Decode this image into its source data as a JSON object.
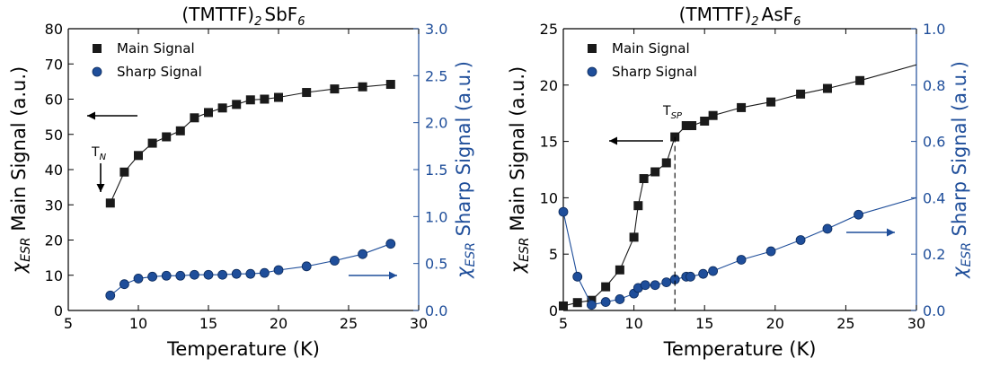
{
  "colors": {
    "main": "#1a1a1a",
    "sharp": "#1f4e9a",
    "sharp_edge": "#0b2a5c"
  },
  "chart_data": [
    {
      "type": "scatter",
      "title": "(TMTTF)$_2$SbF$_6$",
      "title_parts": {
        "pre": "(TMTTF)",
        "sub": "2",
        "mid": "SbF",
        "sub2": "6"
      },
      "xlabel": "Temperature (K)",
      "ylabel_left": "χ$_{ESR}$ Main Signal (a.u.)",
      "ylabel_left_parts": {
        "chi": "χ",
        "sub": "ESR",
        "rest": "Main Signal (a.u.)"
      },
      "ylabel_right": "χ$_{ESR}$ Sharp Signal (a.u.)",
      "ylabel_right_parts": {
        "chi": "χ",
        "sub": "ESR",
        "rest": "Sharp Signal (a.u.)"
      },
      "xlim": [
        5,
        30
      ],
      "xticks": [
        "5",
        "10",
        "15",
        "20",
        "25",
        "30"
      ],
      "ylim_left": [
        0,
        80
      ],
      "yticks_left": [
        "0",
        "10",
        "20",
        "30",
        "40",
        "50",
        "60",
        "70",
        "80"
      ],
      "ylim_right": [
        0,
        3
      ],
      "yticks_right": [
        "0.0",
        "0.5",
        "1.0",
        "1.5",
        "2.0",
        "2.5",
        "3.0"
      ],
      "legend": {
        "position": "top-left",
        "entries": [
          "Main Signal",
          "Sharp Signal"
        ]
      },
      "annotation": {
        "label": "T",
        "sub": "N",
        "x": 7.8,
        "y": 35
      },
      "series": [
        {
          "name": "Main Signal",
          "axis": "left",
          "marker": "square",
          "x": [
            8,
            9,
            10,
            11,
            12,
            13,
            14,
            15,
            16,
            17,
            18,
            19,
            20,
            22,
            24,
            26,
            28
          ],
          "y": [
            30.5,
            39.3,
            44.0,
            47.5,
            49.3,
            51.0,
            54.7,
            56.2,
            57.5,
            58.5,
            59.8,
            60.0,
            60.5,
            61.9,
            62.9,
            63.5,
            64.2
          ]
        },
        {
          "name": "Sharp Signal",
          "axis": "right",
          "marker": "circle",
          "x": [
            8,
            9,
            10,
            11,
            12,
            13,
            14,
            15,
            16,
            17,
            18,
            19,
            20,
            22,
            24,
            26,
            28
          ],
          "y": [
            0.16,
            0.28,
            0.34,
            0.36,
            0.37,
            0.37,
            0.38,
            0.38,
            0.38,
            0.39,
            0.39,
            0.4,
            0.43,
            0.47,
            0.53,
            0.6,
            0.71
          ]
        }
      ]
    },
    {
      "type": "scatter",
      "title": "(TMTTF)$_2$AsF$_6$",
      "title_parts": {
        "pre": "(TMTTF)",
        "sub": "2",
        "mid": "AsF",
        "sub2": "6"
      },
      "xlabel": "Temperature (K)",
      "ylabel_left": "χ$_{ESR}$ Main Signal (a.u.)",
      "ylabel_left_parts": {
        "chi": "χ",
        "sub": "ESR",
        "rest": "Main Signal (a.u.)"
      },
      "ylabel_right": "χ$_{ESR}$ Sharp Signal (a.u.)",
      "ylabel_right_parts": {
        "chi": "χ",
        "sub": "ESR",
        "rest": "Sharp Signal (a.u.)"
      },
      "xlim": [
        5,
        30
      ],
      "xticks": [
        "5",
        "10",
        "15",
        "20",
        "25",
        "30"
      ],
      "ylim_left": [
        0,
        25
      ],
      "yticks_left": [
        "0",
        "5",
        "10",
        "15",
        "20",
        "25"
      ],
      "ylim_right": [
        0,
        1
      ],
      "yticks_right": [
        "0.0",
        "0.2",
        "0.4",
        "0.6",
        "0.8",
        "1.0"
      ],
      "legend": {
        "position": "top-left",
        "entries": [
          "Main Signal",
          "Sharp Signal"
        ]
      },
      "annotation": {
        "label": "T",
        "sub": "SP",
        "x": 12.9
      },
      "series": [
        {
          "name": "Main Signal",
          "axis": "left",
          "marker": "square",
          "x": [
            5,
            6,
            7,
            8,
            9,
            10,
            10.3,
            10.7,
            11.5,
            12.3,
            12.9,
            13.7,
            14.1,
            15,
            15.6,
            17.6,
            19.7,
            21.8,
            23.7,
            26
          ],
          "y": [
            0.4,
            0.7,
            0.9,
            2.1,
            3.6,
            6.5,
            9.3,
            11.7,
            12.3,
            13.1,
            15.4,
            16.4,
            16.4,
            16.8,
            17.3,
            18.0,
            18.5,
            19.2,
            19.7,
            20.4
          ],
          "line_extends_to": [
            30,
            21.8
          ]
        },
        {
          "name": "Sharp Signal",
          "axis": "right",
          "marker": "circle",
          "x": [
            5,
            6,
            7,
            8,
            9,
            10,
            10.3,
            10.8,
            11.5,
            12.3,
            12.9,
            13.7,
            14,
            14.9,
            15.6,
            17.6,
            19.7,
            21.8,
            23.7,
            25.9
          ],
          "y": [
            0.35,
            0.12,
            0.02,
            0.03,
            0.04,
            0.06,
            0.08,
            0.09,
            0.09,
            0.1,
            0.11,
            0.12,
            0.12,
            0.13,
            0.14,
            0.18,
            0.21,
            0.25,
            0.29,
            0.34
          ],
          "line_extends_to": [
            30,
            0.4
          ]
        }
      ]
    }
  ]
}
